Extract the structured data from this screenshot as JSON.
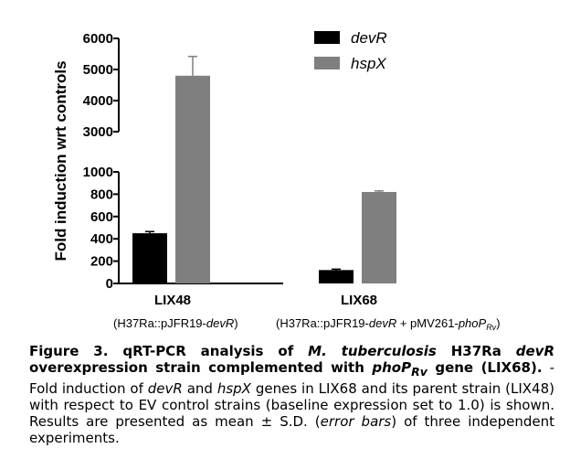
{
  "chart_data": {
    "type": "bar",
    "categories": [
      "LIX48",
      "LIX68"
    ],
    "category_sublabels": {
      "LIX48": {
        "pre": "(H37Ra::pJFR19-",
        "it": "devR",
        "post": ")"
      },
      "LIX68": {
        "pre": "(H37Ra::pJFR19-",
        "it": "devR",
        "mid": " + pMV261-",
        "it2": "phoP",
        "sub": "Rv",
        "post": ")"
      }
    },
    "series": [
      {
        "name": "devR",
        "values": [
          450,
          120
        ],
        "errors": [
          15,
          8
        ],
        "color": "#000000"
      },
      {
        "name": "hspX",
        "values": [
          4800,
          820
        ],
        "errors": [
          620,
          10
        ],
        "color": "#7f7f7f"
      }
    ],
    "ylabel": "Fold induction wrt controls",
    "y_axis_broken": true,
    "y_lower_ticks": [
      0,
      200,
      400,
      600,
      800,
      1000
    ],
    "y_upper_ticks": [
      3000,
      4000,
      5000,
      6000
    ],
    "legend_position": "top-right",
    "grid": false
  },
  "caption": {
    "label": "Figure 3.",
    "title_pre": " qRT-PCR analysis of ",
    "title_it1": "M. tuberculosis",
    "title_mid1": " H37Ra ",
    "title_it2": "devR",
    "title_mid2": " overexpression strain complemented with ",
    "title_it3": "phoP",
    "title_sub": "Rv",
    "title_post": " gene (LIX68).",
    "body_pre": " -Fold induction of ",
    "body_it1": "devR",
    "body_mid1": " and ",
    "body_it2": "hspX",
    "body_mid2": " genes in LIX68 and its parent strain (LIX48) with respect to EV control strains (baseline expression set to 1.0) is shown. Results are presented as mean ± S.D. (",
    "body_it3": "error bars",
    "body_post": ") of three independent experiments."
  }
}
